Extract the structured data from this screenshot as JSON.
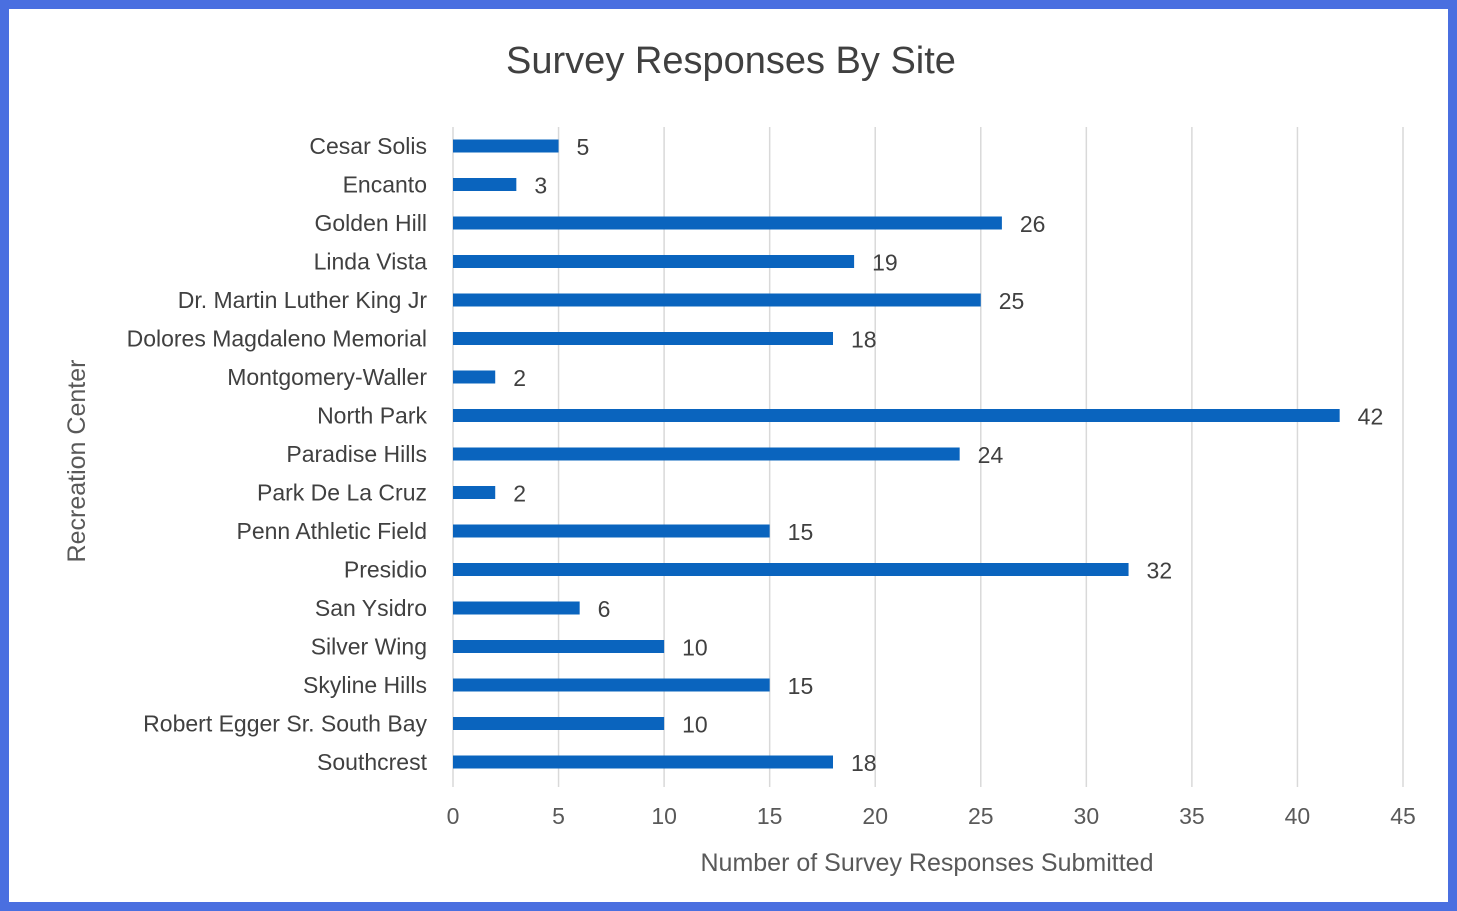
{
  "chart_data": {
    "type": "bar",
    "orientation": "horizontal",
    "title": "Survey Responses By Site",
    "xlabel": "Number of Survey Responses Submitted",
    "ylabel": "Recreation Center",
    "xlim": [
      0,
      45
    ],
    "xticks": [
      0,
      5,
      10,
      15,
      20,
      25,
      30,
      35,
      40,
      45
    ],
    "grid": true,
    "legend": "none",
    "bar_color": "#0a64be",
    "categories": [
      "Cesar Solis",
      "Encanto",
      "Golden Hill",
      "Linda Vista",
      "Dr. Martin Luther King Jr",
      "Dolores Magdaleno Memorial",
      "Montgomery-Waller",
      "North Park",
      "Paradise Hills",
      "Park De La Cruz",
      "Penn Athletic Field",
      "Presidio",
      "San Ysidro",
      "Silver Wing",
      "Skyline Hills",
      "Robert Egger Sr. South Bay",
      "Southcrest"
    ],
    "values": [
      5,
      3,
      26,
      19,
      25,
      18,
      2,
      42,
      24,
      2,
      15,
      32,
      6,
      10,
      15,
      10,
      18
    ]
  }
}
